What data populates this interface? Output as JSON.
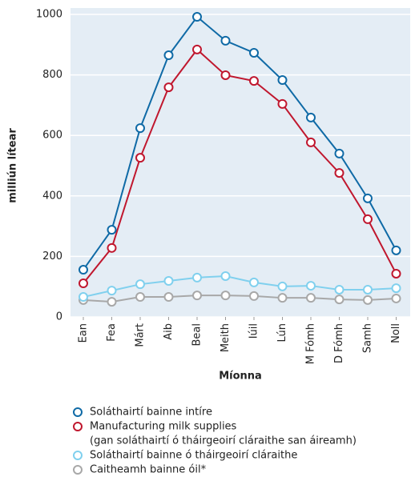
{
  "chart_data": {
    "type": "line",
    "xlabel": "Míonna",
    "ylabel": "milliún lítear",
    "categories": [
      "Ean",
      "Fea",
      "Márt",
      "Aib",
      "Beal",
      "Meith",
      "Iúil",
      "Lún",
      "M Fómh",
      "D Fómh",
      "Samh",
      "Noll"
    ],
    "series": [
      {
        "name": "Soláthairtí bainne intíre",
        "color": "#0f6aa6",
        "values": [
          156,
          288,
          624,
          865,
          992,
          913,
          873,
          783,
          659,
          540,
          392,
          220
        ]
      },
      {
        "name": "Manufacturing milk supplies",
        "note": "(gan soláthairtí ó tháirgeoirí cláraithe san áireamh)",
        "color": "#c0172e",
        "values": [
          111,
          228,
          526,
          759,
          884,
          799,
          780,
          704,
          577,
          476,
          323,
          143
        ]
      },
      {
        "name": "Soláthairtí bainne ó tháirgeoirí cláraithe",
        "color": "#80d0ee",
        "values": [
          66,
          87,
          108,
          119,
          130,
          135,
          114,
          101,
          103,
          90,
          90,
          95
        ]
      },
      {
        "name": "Caitheamh bainne óil*",
        "color": "#a8a8a8",
        "values": [
          56,
          50,
          66,
          66,
          71,
          71,
          69,
          63,
          63,
          58,
          56,
          61
        ]
      }
    ],
    "ylim": [
      0,
      1000
    ],
    "yticks": [
      0,
      200,
      400,
      600,
      800,
      1000
    ],
    "grid": true
  }
}
